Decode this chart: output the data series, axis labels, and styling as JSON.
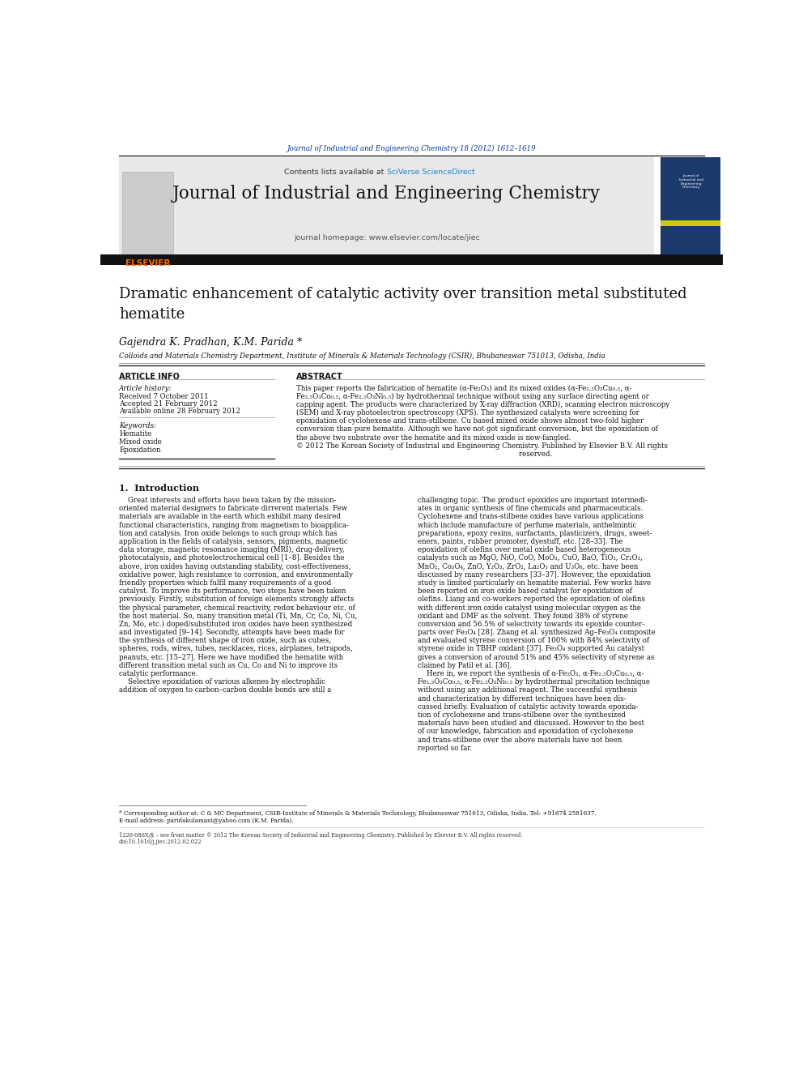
{
  "bg_color": "#ffffff",
  "page_width": 9.92,
  "page_height": 13.23,
  "journal_ref": "Journal of Industrial and Engineering Chemistry 18 (2012) 1612–1619",
  "journal_ref_color": "#003399",
  "contents_plain": "Contents lists available at ",
  "sciverse_text": "SciVerse ScienceDirect",
  "sciverse_color": "#2288cc",
  "journal_name": "Journal of Industrial and Engineering Chemistry",
  "journal_homepage": "journal homepage: www.elsevier.com/locate/jiec",
  "header_bg": "#e8e8e8",
  "elsevier_orange": "#ff6600",
  "sidebar_color": "#1a3a6b",
  "sidebar_yellow": "#cccc00",
  "article_title": "Dramatic enhancement of catalytic activity over transition metal substituted\nhematite",
  "authors": "Gajendra K. Pradhan, K.M. Parida *",
  "affiliation": "Colloids and Materials Chemistry Department, Institute of Minerals & Materials Technology (CSIR), Bhubaneswar 751013, Odisha, India",
  "article_info_header": "ARTICLE INFO",
  "abstract_header": "ABSTRACT",
  "article_history_label": "Article history:",
  "received": "Received 7 October 2011",
  "accepted": "Accepted 21 February 2012",
  "available": "Available online 28 February 2012",
  "keywords_label": "Keywords:",
  "keywords": [
    "Hematite",
    "Mixed oxide",
    "Epoxidation"
  ],
  "abstract_lines": [
    "This paper reports the fabrication of hematite (α-Fe₂O₃) and its mixed oxides (α-Fe₂.₅O₃Cu₀.₅, α-",
    "Fe₂.₅O₃Co₀.₅, α-Fe₂.₅O₃Ni₀.₅) by hydrothermal technique without using any surface directing agent or",
    "capping agent. The products were characterized by X-ray diffraction (XRD), scanning electron microscopy",
    "(SEM) and X-ray photoelectron spectroscopy (XPS). The synthesized catalysts were screening for",
    "epoxidation of cyclohexene and trans-stilbene. Cu based mixed oxide shows almost two-fold higher",
    "conversion than pure hematite. Although we have not got significant conversion, but the epoxidation of",
    "the above two substrate over the hematite and its mixed oxide is new-fangled.",
    "© 2012 The Korean Society of Industrial and Engineering Chemistry. Published by Elsevier B.V. All rights",
    "                                                                                                    reserved."
  ],
  "intro_heading": "1.  Introduction",
  "intro_col1": [
    "    Great interests and efforts have been taken by the mission-",
    "oriented material designers to fabricate dirrerent materials. Few",
    "materials are available in the earth which exhibit many desired",
    "functional characteristics, ranging from magnetism to bioapplica-",
    "tion and catalysis. Iron oxide belongs to such group which has",
    "application in the fields of catalysis, sensors, pigments, magnetic",
    "data storage, magnetic resonance imaging (MRI), drug-delivery,",
    "photocatalysis, and photoelectrochemical cell [1–8]. Besides the",
    "above, iron oxides having outstanding stability, cost-effectiveness,",
    "oxidative power, high resistance to corrosion, and environmentally",
    "friendly properties which fulfil many requirements of a good",
    "catalyst. To improve its performance, two steps have been taken",
    "previously. Firstly, substitution of foreign elements strongly affects",
    "the physical parameter, chemical reactivity, redox behaviour etc. of",
    "the host material. So, many transition metal (Ti, Mn, Cr, Co, Ni, Cu,",
    "Zn, Mo, etc.) doped/substituted iron oxides have been synthesized",
    "and investigated [9–14]. Secondly, attempts have been made for",
    "the synthesis of different shape of iron oxide, such as cubes,",
    "spheres, rods, wires, tubes, necklaces, rices, airplanes, tetrapods,",
    "peanuts, etc. [15–27]. Here we have modified the hematite with",
    "different transition metal such as Cu, Co and Ni to improve its",
    "catalytic performance.",
    "    Selective epoxidation of various alkenes by electrophilic",
    "addition of oxygen to carbon–carbon double bonds are still a"
  ],
  "intro_col2": [
    "challenging topic. The product epoxides are important intermedi-",
    "ates in organic synthesis of fine chemicals and pharmaceuticals.",
    "Cyclohexene and trans-stilbene oxides have various applications",
    "which include manufacture of perfume materials, anthelmintic",
    "preparations, epoxy resins, surfactants, plasticizers, drugs, sweet-",
    "eners, paints, rubber promoter, dyestuff, etc. [28–33]. The",
    "epoxidation of olefins over metal oxide based heterogeneous",
    "catalysts such as MgO, NiO, CoO, MoO₃, CuO, BaO, TiO₂, Cr₂O₃,",
    "MnO₂, Co₃O₄, ZnO, Y₂O₃, ZrO₂, La₂O₃ and U₃O₈, etc. have been",
    "discussed by many researchers [33–37]. However, the epoxidation",
    "study is limited particularly on hematite material. Few works have",
    "been reported on iron oxide based catalyst for epoxidation of",
    "olefins. Liang and co-workers reported the epoxidation of olefins",
    "with different iron oxide catalyst using molecular oxygen as the",
    "oxidant and DMF as the solvent. They found 38% of styrene",
    "conversion and 56.5% of selectivity towards its epoxide counter-",
    "parts over Fe₃O₄ [28]. Zhang et al. synthesized Ag–Fe₃O₄ composite",
    "and evaluated styrene conversion of 100% with 84% selectivity of",
    "styrene oxide in TBHP oxidant [37]. Fe₃O₄ supported Au catalyst",
    "gives a conversion of around 51% and 45% selectivity of styrene as",
    "claimed by Patil et al. [36].",
    "    Here in, we report the synthesis of α-Fe₂O₃, α-Fe₂.₅O₃Cu₀.₅, α-",
    "Fe₂.₅O₃Co₀.₅, α-Fe₂.₅O₃Ni₀.₅ by hydrothermal precitation technique",
    "without using any additional reagent. The successful synthesis",
    "and characterization by different techniques have been dis-",
    "cussed briefly. Evaluation of catalytic activity towards epoxida-",
    "tion of cyclohexene and trans-stilbene over the synthesized",
    "materials have been studied and discussed. However to the best",
    "of our knowledge, fabrication and epoxidation of cyclohexene",
    "and trans-stilbene over the above materials have not been",
    "reported so far."
  ],
  "footnote_star": "* Corresponding author at: C & MC Department, CSIR-Institute of Minerals & Materials Technology, Bhubaneswar 751013, Odisha, India. Tel: +91674 2581637.",
  "footnote_email": "E-mail address: paridakulamani@yahoo.com (K.M. Parida).",
  "footnote_issn": "1226-086X/$ – see front matter © 2012 The Korean Society of Industrial and Engineering Chemistry. Published by Elsevier B.V. All rights reserved.",
  "footnote_doi": "doi:10.1016/j.jiec.2012.02.022"
}
